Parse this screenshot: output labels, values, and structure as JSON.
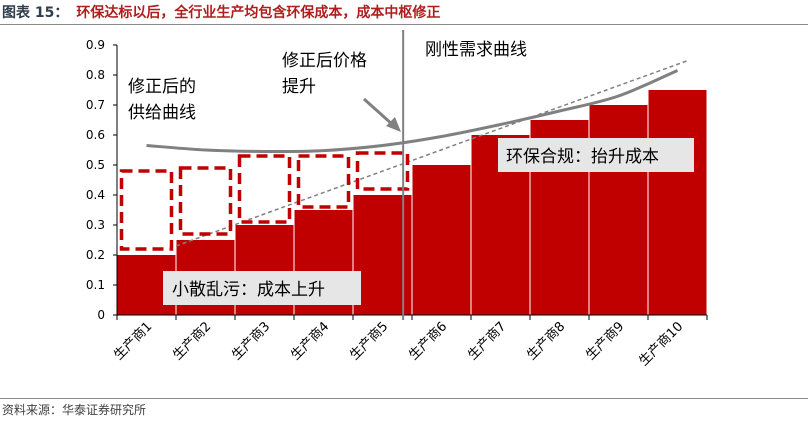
{
  "header": {
    "figure_number": "图表 15：",
    "title": "环保达标以后，全行业生产均包含环保成本，成本中枢修正"
  },
  "footer": {
    "source": "资料来源：华泰证券研究所"
  },
  "colors": {
    "bar": "#c00000",
    "dashed_box": "#c00000",
    "supply_curve": "#808080",
    "trend_line": "#808080",
    "divider": "#808080",
    "label_bg": "#e6e6e6",
    "title_red": "#b01d1d"
  },
  "chart_data": {
    "type": "bar",
    "categories": [
      "生产商1",
      "生产商2",
      "生产商3",
      "生产商4",
      "生产商5",
      "生产商6",
      "生产商7",
      "生产商8",
      "生产商9",
      "生产商10"
    ],
    "values": [
      0.2,
      0.25,
      0.3,
      0.35,
      0.4,
      0.5,
      0.6,
      0.65,
      0.7,
      0.75
    ],
    "ylim": [
      0,
      0.9
    ],
    "yticks": [
      "0",
      "0.1",
      "0.2",
      "0.3",
      "0.4",
      "0.5",
      "0.6",
      "0.7",
      "0.8",
      "0.9"
    ],
    "grid": false,
    "dashed_boxes": [
      {
        "category": "生产商1",
        "low": 0.22,
        "high": 0.48
      },
      {
        "category": "生产商2",
        "low": 0.27,
        "high": 0.49
      },
      {
        "category": "生产商3",
        "low": 0.31,
        "high": 0.53
      },
      {
        "category": "生产商4",
        "low": 0.36,
        "high": 0.53
      },
      {
        "category": "生产商5",
        "low": 0.42,
        "high": 0.54
      }
    ],
    "supply_curve": {
      "x": [
        0.5,
        1.5,
        2.5,
        3.5,
        4.5,
        5.5,
        6.5,
        7.5,
        8.5,
        9.5
      ],
      "y": [
        0.565,
        0.55,
        0.545,
        0.548,
        0.565,
        0.595,
        0.635,
        0.68,
        0.73,
        0.815
      ]
    },
    "trend_line": {
      "x": [
        1.0,
        9.7
      ],
      "y": [
        0.23,
        0.85
      ]
    },
    "divider_x": 4.85,
    "annotations": {
      "supply_curve_label": [
        "修正后的",
        "供给曲线"
      ],
      "price_label": [
        "修正后价格",
        "提升"
      ],
      "demand_label": "刚性需求曲线",
      "env_label": "环保合规：抬升成本",
      "small_label": "小散乱污：成本上升"
    }
  }
}
